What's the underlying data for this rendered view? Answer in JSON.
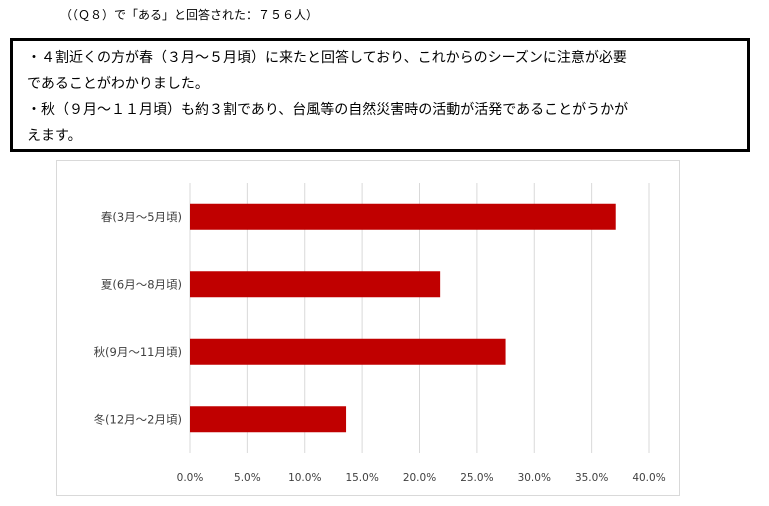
{
  "caption": "（（Ｑ８）で「ある」と回答された：７５６人）",
  "summary": {
    "lines": [
      "・４割近くの方が春（３月～５月頃）に来たと回答しており、これからのシーズンに注意が必要",
      "であることがわかりました。",
      "・秋（９月～１１月頃）も約３割であり、台風等の自然災害時の活動が活発であることがうかが",
      "えます。"
    ]
  },
  "chart_data": {
    "type": "bar",
    "orientation": "horizontal",
    "categories": [
      "春(3月～5月頃)",
      "夏(6月～8月頃)",
      "秋(9月～11月頃)",
      "冬(12月～2月頃)"
    ],
    "values": [
      37.1,
      21.8,
      27.5,
      13.6
    ],
    "x_ticks": [
      "0.0%",
      "5.0%",
      "10.0%",
      "15.0%",
      "20.0%",
      "25.0%",
      "30.0%",
      "35.0%",
      "40.0%"
    ],
    "xlim": [
      0,
      40
    ],
    "grid": true,
    "bar_color": "#c00000",
    "grid_color": "#d9d9d9"
  }
}
